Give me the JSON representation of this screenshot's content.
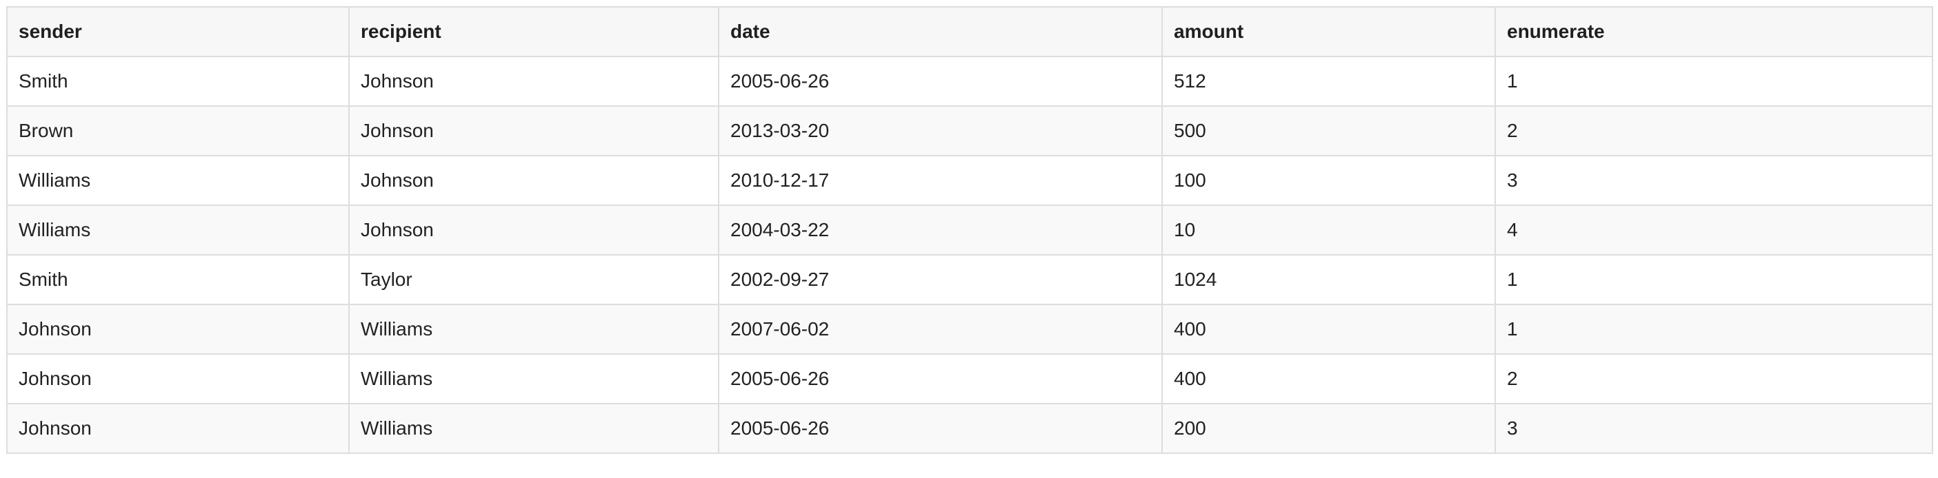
{
  "table": {
    "columns": [
      "sender",
      "recipient",
      "date",
      "amount",
      "enumerate"
    ],
    "rows": [
      [
        "Smith",
        "Johnson",
        "2005-06-26",
        "512",
        "1"
      ],
      [
        "Brown",
        "Johnson",
        "2013-03-20",
        "500",
        "2"
      ],
      [
        "Williams",
        "Johnson",
        "2010-12-17",
        "100",
        "3"
      ],
      [
        "Williams",
        "Johnson",
        "2004-03-22",
        "10",
        "4"
      ],
      [
        "Smith",
        "Taylor",
        "2002-09-27",
        "1024",
        "1"
      ],
      [
        "Johnson",
        "Williams",
        "2007-06-02",
        "400",
        "1"
      ],
      [
        "Johnson",
        "Williams",
        "2005-06-26",
        "400",
        "2"
      ],
      [
        "Johnson",
        "Williams",
        "2005-06-26",
        "200",
        "3"
      ]
    ]
  }
}
